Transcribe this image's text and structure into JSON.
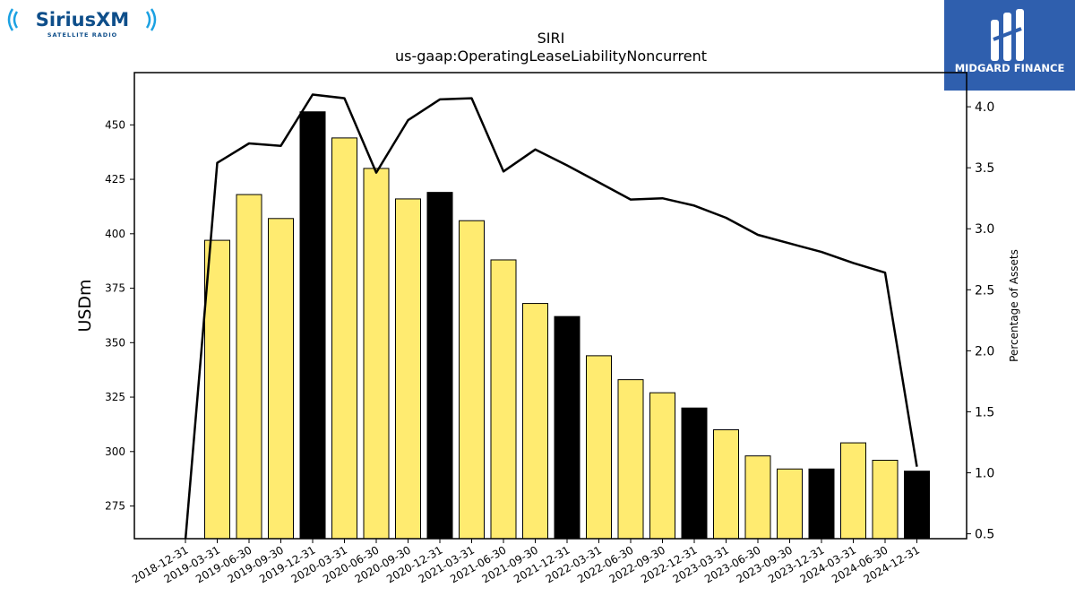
{
  "brand": {
    "left_logo_text": "SiriusXM",
    "left_logo_sub": "SATELLITE RADIO",
    "right_logo_text": "MIDGARD FINANCE",
    "right_logo_bg": "#2f5fae"
  },
  "chart_data": {
    "type": "bar",
    "title": "SIRI",
    "subtitle": "us-gaap:OperatingLeaseLiabilityNoncurrent",
    "ylabel": "USDm",
    "y2label": "Percentage of Assets",
    "ylim": [
      260,
      474
    ],
    "y2lim": [
      0.46,
      4.28
    ],
    "yticks": [
      275,
      300,
      325,
      350,
      375,
      400,
      425,
      450
    ],
    "y2ticks": [
      0.5,
      1.0,
      1.5,
      2.0,
      2.5,
      3.0,
      3.5,
      4.0
    ],
    "categories": [
      "2018-12-31",
      "2019-03-31",
      "2019-06-30",
      "2019-09-30",
      "2019-12-31",
      "2020-03-31",
      "2020-06-30",
      "2020-09-30",
      "2020-12-31",
      "2021-03-31",
      "2021-06-30",
      "2021-09-30",
      "2021-12-31",
      "2022-03-31",
      "2022-06-30",
      "2022-09-30",
      "2022-12-31",
      "2023-03-31",
      "2023-06-30",
      "2023-09-30",
      "2023-12-31",
      "2024-03-31",
      "2024-06-30",
      "2024-12-31"
    ],
    "series": [
      {
        "kind": "bar",
        "values": [
          null,
          397,
          418,
          407,
          456,
          444,
          430,
          416,
          419,
          406,
          388,
          368,
          362,
          344,
          333,
          327,
          320,
          310,
          298,
          292,
          292,
          304,
          296,
          291
        ],
        "highlight": [
          false,
          false,
          false,
          false,
          true,
          false,
          false,
          false,
          true,
          false,
          false,
          false,
          true,
          false,
          false,
          false,
          true,
          false,
          false,
          false,
          true,
          false,
          false,
          true
        ]
      },
      {
        "kind": "line",
        "axis": "right",
        "values": [
          0.45,
          3.54,
          3.7,
          3.68,
          4.1,
          4.07,
          3.46,
          3.89,
          4.06,
          4.07,
          3.47,
          3.65,
          3.52,
          3.38,
          3.24,
          3.25,
          3.19,
          3.09,
          2.95,
          2.88,
          2.81,
          2.72,
          2.64,
          1.05
        ]
      }
    ],
    "colors": {
      "bar": "#ffeb70",
      "bar_highlight": "#000000",
      "bar_edge": "#000000",
      "line": "#000000"
    }
  }
}
